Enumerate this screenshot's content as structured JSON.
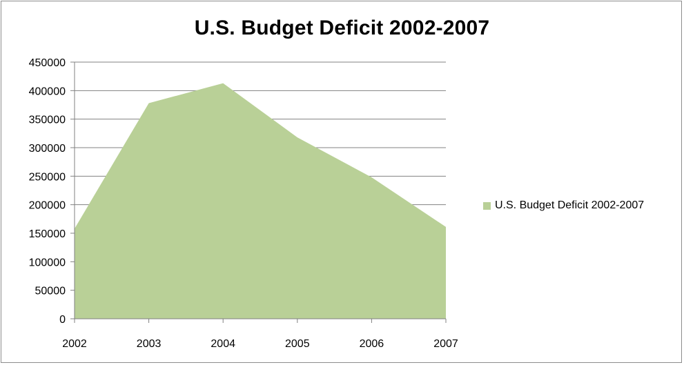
{
  "chart_data": {
    "type": "area",
    "title": "U.S. Budget Deficit 2002-2007",
    "xlabel": "",
    "ylabel": "",
    "categories": [
      "2002",
      "2003",
      "2004",
      "2005",
      "2006",
      "2007"
    ],
    "series": [
      {
        "name": "U.S. Budget Deficit 2002-2007",
        "values": [
          158000,
          378000,
          413000,
          318000,
          248000,
          161000
        ],
        "color": "#b9d097"
      }
    ],
    "ylim": [
      0,
      450000
    ],
    "yticks": [
      "0",
      "50000",
      "100000",
      "150000",
      "200000",
      "250000",
      "300000",
      "350000",
      "400000",
      "450000"
    ],
    "grid": true,
    "gridline_color": "#808080",
    "legend_position": "right"
  }
}
